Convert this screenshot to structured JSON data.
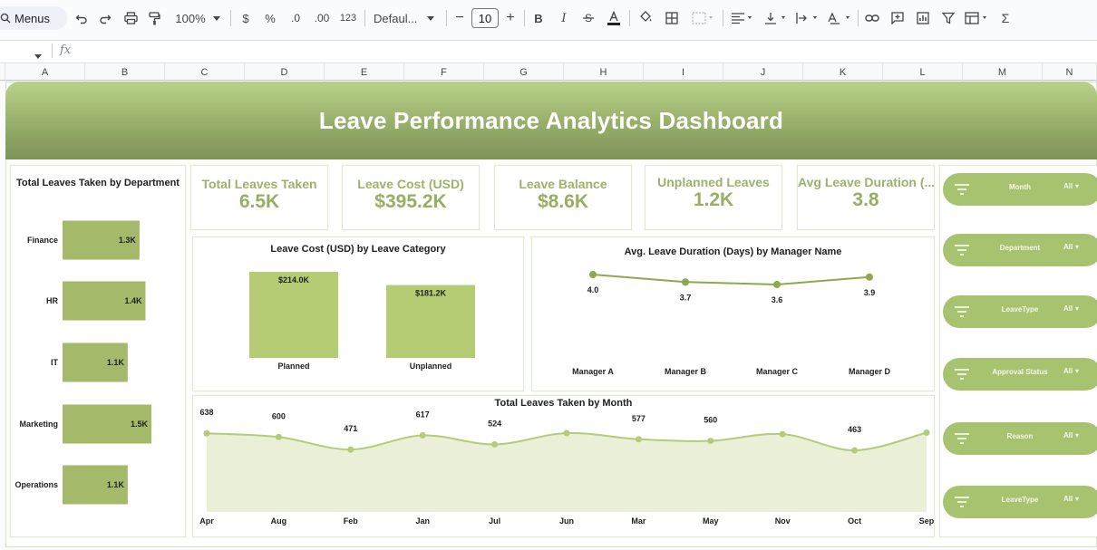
{
  "toolbar": {
    "menus_label": "Menus",
    "zoom": "100%",
    "currency": "$",
    "percent": "%",
    "dec_decrease": ".0",
    "dec_increase": ".00",
    "number_format": "123",
    "font_name": "Defaul...",
    "font_size": "10",
    "minus": "−",
    "plus": "+",
    "bold": "B",
    "italic": "I",
    "sum": "Σ"
  },
  "formula_bar": {
    "fx": "fx"
  },
  "columns": [
    "A",
    "B",
    "C",
    "D",
    "E",
    "F",
    "G",
    "H",
    "I",
    "J",
    "K",
    "L",
    "M",
    "N"
  ],
  "dashboard": {
    "title": "Leave Performance Analytics Dashboard",
    "kpis": [
      {
        "title": "Total Leaves Taken",
        "value": "6.5K"
      },
      {
        "title": "Leave Cost (USD)",
        "value": "$395.2K"
      },
      {
        "title": "Leave Balance",
        "value": "$8.6K"
      },
      {
        "title": "Unplanned Leaves",
        "value": "1.2K"
      },
      {
        "title": "Avg Leave Duration (...",
        "value": "3.8"
      }
    ],
    "slicers": [
      {
        "label": "Month",
        "value": "All"
      },
      {
        "label": "Department",
        "value": "All"
      },
      {
        "label": "LeaveType",
        "value": "All"
      },
      {
        "label": "Approval Status",
        "value": "All"
      },
      {
        "label": "Reason",
        "value": "All"
      },
      {
        "label": "LeaveType",
        "value": "All"
      }
    ]
  },
  "colors": {
    "accent": "#a7c36f",
    "bar": "#a5b96a",
    "bar_light": "#b5cc74",
    "line": "#8fa84f",
    "kpi_text": "#97ae63"
  },
  "chart_data": [
    {
      "id": "dept",
      "type": "bar",
      "orientation": "horizontal",
      "title": "Total Leaves Taken by Department",
      "categories": [
        "Finance",
        "HR",
        "IT",
        "Marketing",
        "Operations"
      ],
      "values": [
        1300,
        1400,
        1100,
        1500,
        1100
      ],
      "labels": [
        "1.3K",
        "1.4K",
        "1.1K",
        "1.5K",
        "1.1K"
      ]
    },
    {
      "id": "category",
      "type": "bar",
      "title": "Leave Cost (USD) by Leave Category",
      "categories": [
        "Planned",
        "Unplanned"
      ],
      "values": [
        214.0,
        181.2
      ],
      "labels": [
        "$214.0K",
        "$181.2K"
      ]
    },
    {
      "id": "manager",
      "type": "line",
      "title": "Avg. Leave Duration (Days) by Manager Name",
      "categories": [
        "Manager A",
        "Manager B",
        "Manager C",
        "Manager D"
      ],
      "values": [
        4.0,
        3.7,
        3.6,
        3.9
      ],
      "labels": [
        "4.0",
        "3.7",
        "3.6",
        "3.9"
      ]
    },
    {
      "id": "month",
      "type": "area",
      "title": "Total Leaves Taken by Month",
      "categories": [
        "Apr",
        "Aug",
        "Feb",
        "Jan",
        "Jul",
        "Jun",
        "Mar",
        "May",
        "Nov",
        "Oct",
        "Sep"
      ],
      "values": [
        638,
        600,
        471,
        617,
        524,
        640,
        577,
        560,
        630,
        463,
        645
      ],
      "labels": [
        "638",
        "600",
        "471",
        "617",
        "524",
        "",
        "577",
        "560",
        "",
        "463",
        ""
      ]
    }
  ]
}
